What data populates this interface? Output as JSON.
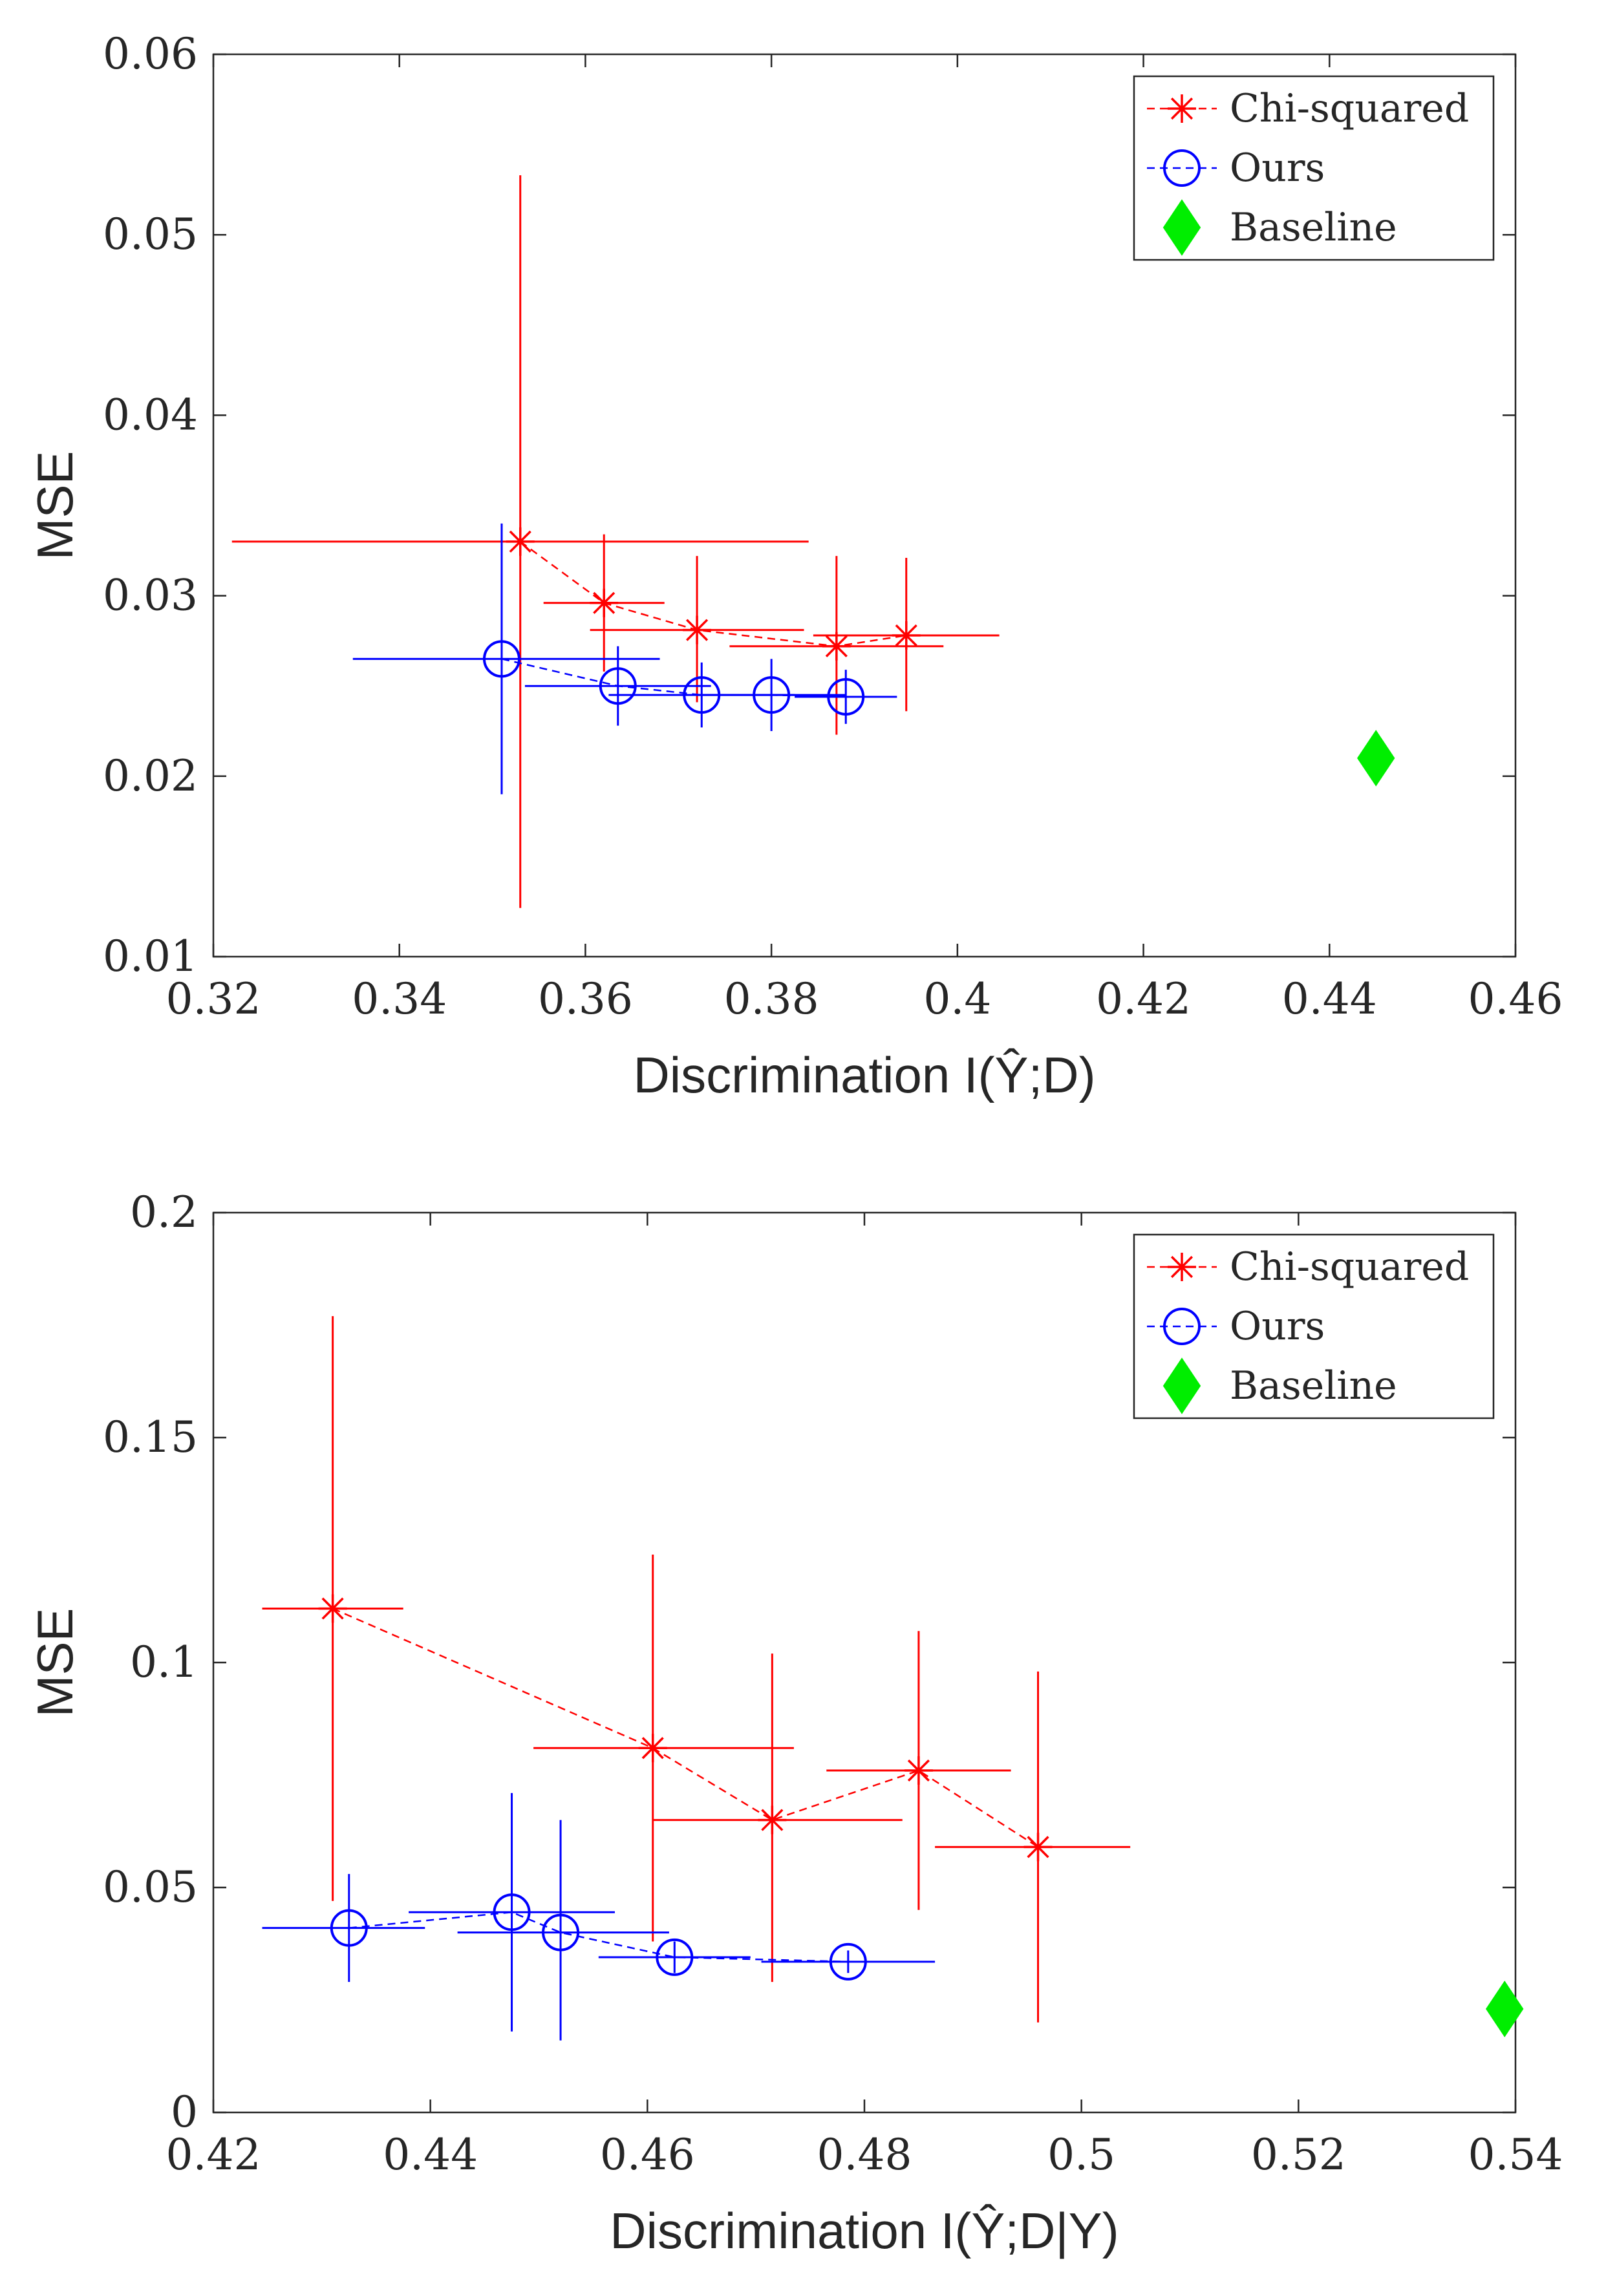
{
  "chart_data": [
    {
      "type": "scatter",
      "title": "",
      "xlabel": "Discrimination I(Ŷ;D)",
      "ylabel": "MSE",
      "xlim": [
        0.32,
        0.46
      ],
      "ylim": [
        0.01,
        0.06
      ],
      "xticks": [
        0.32,
        0.34,
        0.36,
        0.38,
        0.4,
        0.42,
        0.44,
        0.46
      ],
      "xtick_labels": [
        "0.32",
        "0.34",
        "0.36",
        "0.38",
        "0.4",
        "0.42",
        "0.44",
        "0.46"
      ],
      "yticks": [
        0.01,
        0.02,
        0.03,
        0.04,
        0.05,
        0.06
      ],
      "ytick_labels": [
        "0.01",
        "0.02",
        "0.03",
        "0.04",
        "0.05",
        "0.06"
      ],
      "legend_position": "top-right",
      "series": [
        {
          "name": "Chi-squared",
          "color": "#ff0000",
          "marker": "asterisk",
          "line": "dashed",
          "points": [
            {
              "x": 0.353,
              "y": 0.033,
              "xerr": [
                0.322,
                0.384
              ],
              "yerr": [
                0.0127,
                0.0533
              ]
            },
            {
              "x": 0.362,
              "y": 0.0296,
              "xerr": [
                0.3555,
                0.3685
              ],
              "yerr": [
                0.0258,
                0.0334
              ]
            },
            {
              "x": 0.372,
              "y": 0.0281,
              "xerr": [
                0.3605,
                0.3835
              ],
              "yerr": [
                0.0241,
                0.0322
              ]
            },
            {
              "x": 0.387,
              "y": 0.0272,
              "xerr": [
                0.3755,
                0.3985
              ],
              "yerr": [
                0.0223,
                0.0322
              ]
            },
            {
              "x": 0.3945,
              "y": 0.0278,
              "xerr": [
                0.3845,
                0.4045
              ],
              "yerr": [
                0.0236,
                0.0321
              ]
            }
          ]
        },
        {
          "name": "Ours",
          "color": "#0000ff",
          "marker": "circle",
          "line": "dashed",
          "points": [
            {
              "x": 0.351,
              "y": 0.0265,
              "xerr": [
                0.335,
                0.368
              ],
              "yerr": [
                0.019,
                0.034
              ]
            },
            {
              "x": 0.3635,
              "y": 0.025,
              "xerr": [
                0.3535,
                0.3735
              ],
              "yerr": [
                0.0228,
                0.0272
              ]
            },
            {
              "x": 0.3725,
              "y": 0.0245,
              "xerr": [
                0.3625,
                0.3825
              ],
              "yerr": [
                0.0227,
                0.0263
              ]
            },
            {
              "x": 0.38,
              "y": 0.0245,
              "xerr": [
                0.372,
                0.388
              ],
              "yerr": [
                0.0225,
                0.0265
              ]
            },
            {
              "x": 0.388,
              "y": 0.0244,
              "xerr": [
                0.3825,
                0.3935
              ],
              "yerr": [
                0.0229,
                0.0259
              ]
            }
          ]
        },
        {
          "name": "Baseline",
          "color": "#00ee00",
          "marker": "diamond",
          "line": "none",
          "points": [
            {
              "x": 0.445,
              "y": 0.021
            }
          ]
        }
      ]
    },
    {
      "type": "scatter",
      "title": "",
      "xlabel": "Discrimination I(Ŷ;D|Y)",
      "ylabel": "MSE",
      "xlim": [
        0.42,
        0.54
      ],
      "ylim": [
        0,
        0.2
      ],
      "xticks": [
        0.42,
        0.44,
        0.46,
        0.48,
        0.5,
        0.52,
        0.54
      ],
      "xtick_labels": [
        "0.42",
        "0.44",
        "0.46",
        "0.48",
        "0.5",
        "0.52",
        "0.54"
      ],
      "yticks": [
        0,
        0.05,
        0.1,
        0.15,
        0.2
      ],
      "ytick_labels": [
        "0",
        "0.05",
        "0.1",
        "0.15",
        "0.2"
      ],
      "legend_position": "top-right",
      "series": [
        {
          "name": "Chi-squared",
          "color": "#ff0000",
          "marker": "asterisk",
          "line": "dashed",
          "points": [
            {
              "x": 0.431,
              "y": 0.112,
              "xerr": [
                0.4245,
                0.4375
              ],
              "yerr": [
                0.047,
                0.177
              ]
            },
            {
              "x": 0.4605,
              "y": 0.081,
              "xerr": [
                0.4495,
                0.4735
              ],
              "yerr": [
                0.038,
                0.124
              ]
            },
            {
              "x": 0.4715,
              "y": 0.065,
              "xerr": [
                0.4605,
                0.4835
              ],
              "yerr": [
                0.029,
                0.102
              ]
            },
            {
              "x": 0.485,
              "y": 0.076,
              "xerr": [
                0.4765,
                0.4935
              ],
              "yerr": [
                0.045,
                0.107
              ]
            },
            {
              "x": 0.496,
              "y": 0.059,
              "xerr": [
                0.4865,
                0.5045
              ],
              "yerr": [
                0.02,
                0.098
              ]
            }
          ]
        },
        {
          "name": "Ours",
          "color": "#0000ff",
          "marker": "circle",
          "line": "dashed",
          "points": [
            {
              "x": 0.4325,
              "y": 0.041,
              "xerr": [
                0.4245,
                0.4395
              ],
              "yerr": [
                0.029,
                0.053
              ]
            },
            {
              "x": 0.4475,
              "y": 0.0445,
              "xerr": [
                0.438,
                0.457
              ],
              "yerr": [
                0.018,
                0.071
              ]
            },
            {
              "x": 0.452,
              "y": 0.04,
              "xerr": [
                0.4425,
                0.462
              ],
              "yerr": [
                0.016,
                0.065
              ]
            },
            {
              "x": 0.4625,
              "y": 0.0345,
              "xerr": [
                0.4555,
                0.4695
              ],
              "yerr": [
                0.031,
                0.038
              ]
            },
            {
              "x": 0.4785,
              "y": 0.0335,
              "xerr": [
                0.4705,
                0.4865
              ],
              "yerr": [
                0.031,
                0.036
              ]
            }
          ]
        },
        {
          "name": "Baseline",
          "color": "#00ee00",
          "marker": "diamond",
          "line": "none",
          "points": [
            {
              "x": 0.539,
              "y": 0.023
            }
          ]
        }
      ]
    }
  ]
}
